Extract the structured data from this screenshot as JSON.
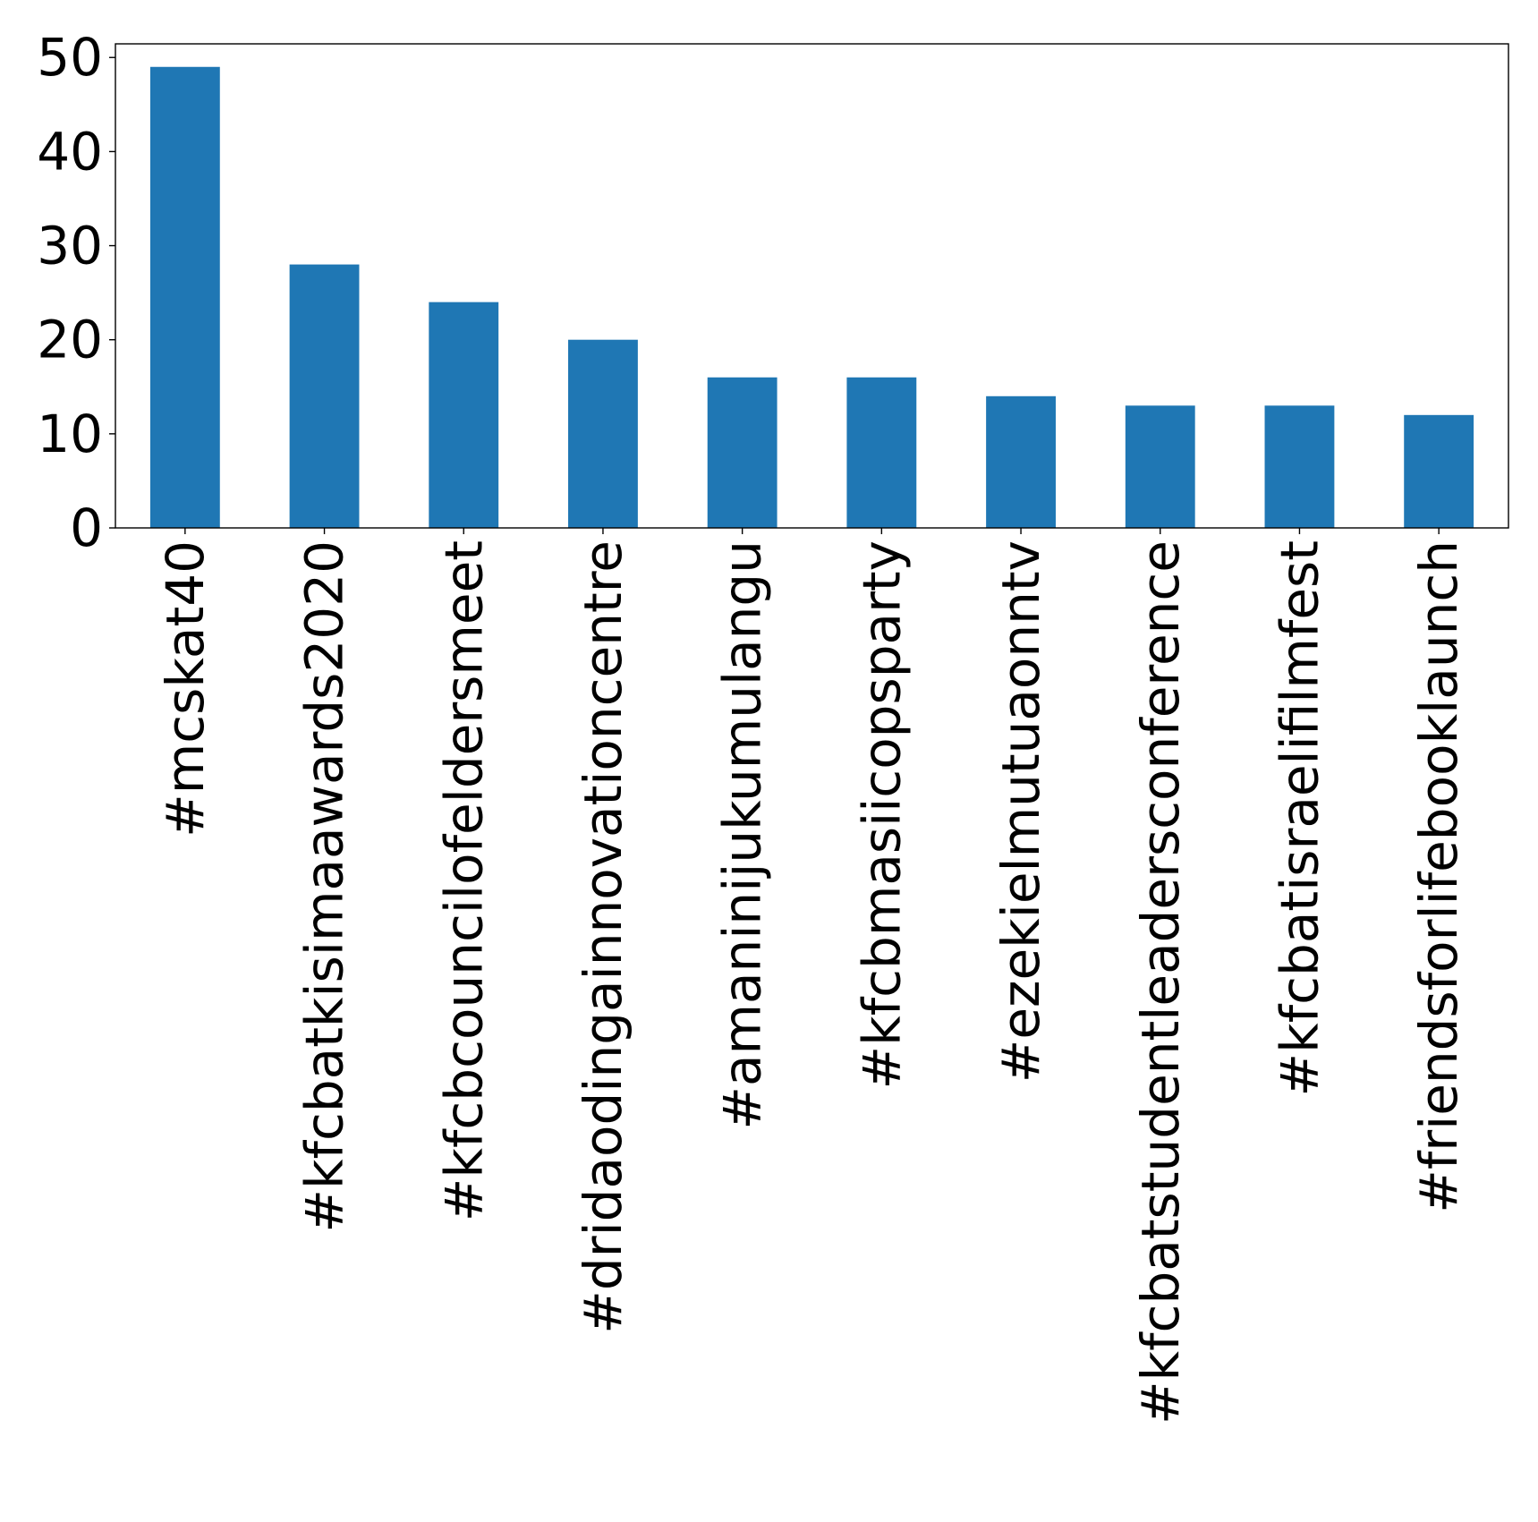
{
  "chart_data": {
    "type": "bar",
    "categories": [
      "#mcskat40",
      "#kfcbatkisimaawards2020",
      "#kfcbcouncilofeldersmeet",
      "#dridaodingainnovationcentre",
      "#amaninijukumulangu",
      "#kfcbmasiicopsparty",
      "#ezekielmutuaonntv",
      "#kfcbatstudentleadersconference",
      "#kfcbatisraelifilmfest",
      "#friendsforlifebooklaunch"
    ],
    "values": [
      49,
      28,
      24,
      20,
      16,
      16,
      14,
      13,
      13,
      12
    ],
    "ylim": [
      0,
      51.45
    ],
    "yticks": [
      "0",
      "10",
      "20",
      "30",
      "40",
      "50"
    ],
    "title": "",
    "xlabel": "",
    "ylabel": "",
    "bar_color": "#1f77b4",
    "grid": false,
    "legend": "none"
  }
}
